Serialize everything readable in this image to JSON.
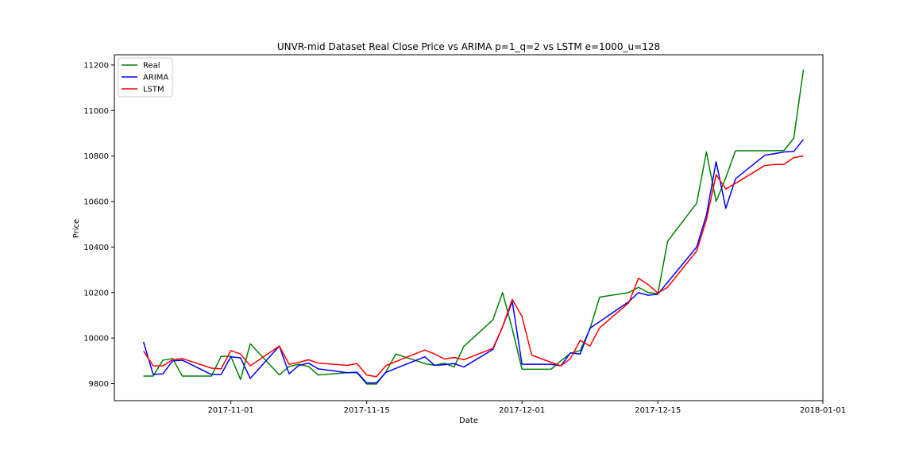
{
  "chart_data": {
    "type": "line",
    "title": "UNVR-mid Dataset Real Close Price vs ARIMA p=1_q=2 vs LSTM e=1000_u=128",
    "xlabel": "Date",
    "ylabel": "Price",
    "x_tick_labels": [
      "2017-11-01",
      "2017-11-15",
      "2017-12-01",
      "2017-12-15",
      "2018-01-01"
    ],
    "y_tick_labels": [
      "9800",
      "10000",
      "10200",
      "10400",
      "10600",
      "10800",
      "11000",
      "11200"
    ],
    "xlim": [
      "2017-10-20",
      "2018-01-01"
    ],
    "ylim": [
      9725,
      11245
    ],
    "grid": false,
    "legend_position": "top-left",
    "series": [
      {
        "name": "Real",
        "color": "#008000",
        "points": [
          [
            "2017-10-23",
            9833
          ],
          [
            "2017-10-24",
            9833
          ],
          [
            "2017-10-25",
            9903
          ],
          [
            "2017-10-26",
            9910
          ],
          [
            "2017-10-27",
            9833
          ],
          [
            "2017-10-30",
            9833
          ],
          [
            "2017-10-31",
            9920
          ],
          [
            "2017-11-01",
            9920
          ],
          [
            "2017-11-02",
            9818
          ],
          [
            "2017-11-03",
            9975
          ],
          [
            "2017-11-06",
            9838
          ],
          [
            "2017-11-07",
            9875
          ],
          [
            "2017-11-08",
            9885
          ],
          [
            "2017-11-09",
            9875
          ],
          [
            "2017-11-10",
            9838
          ],
          [
            "2017-11-13",
            9848
          ],
          [
            "2017-11-14",
            9848
          ],
          [
            "2017-11-15",
            9798
          ],
          [
            "2017-11-16",
            9798
          ],
          [
            "2017-11-17",
            9853
          ],
          [
            "2017-11-18",
            9930
          ],
          [
            "2017-11-21",
            9888
          ],
          [
            "2017-11-22",
            9880
          ],
          [
            "2017-11-23",
            9890
          ],
          [
            "2017-11-24",
            9873
          ],
          [
            "2017-11-25",
            9963
          ],
          [
            "2017-11-28",
            10080
          ],
          [
            "2017-11-29",
            10200
          ],
          [
            "2017-11-30",
            10040
          ],
          [
            "2017-12-01",
            9863
          ],
          [
            "2017-12-04",
            9863
          ],
          [
            "2017-12-05",
            9900
          ],
          [
            "2017-12-06",
            9933
          ],
          [
            "2017-12-07",
            9945
          ],
          [
            "2017-12-08",
            10040
          ],
          [
            "2017-12-09",
            10180
          ],
          [
            "2017-12-12",
            10200
          ],
          [
            "2017-12-13",
            10223
          ],
          [
            "2017-12-14",
            10200
          ],
          [
            "2017-12-15",
            10195
          ],
          [
            "2017-12-16",
            10425
          ],
          [
            "2017-12-19",
            10593
          ],
          [
            "2017-12-20",
            10818
          ],
          [
            "2017-12-21",
            10600
          ],
          [
            "2017-12-22",
            10705
          ],
          [
            "2017-12-23",
            10823
          ],
          [
            "2017-12-27",
            10823
          ],
          [
            "2017-12-28",
            10825
          ],
          [
            "2017-12-29",
            10878
          ],
          [
            "2017-12-30",
            11180
          ]
        ]
      },
      {
        "name": "ARIMA",
        "color": "#0000ff",
        "points": [
          [
            "2017-10-23",
            9983
          ],
          [
            "2017-10-24",
            9840
          ],
          [
            "2017-10-25",
            9843
          ],
          [
            "2017-10-26",
            9900
          ],
          [
            "2017-10-27",
            9903
          ],
          [
            "2017-10-30",
            9840
          ],
          [
            "2017-10-31",
            9840
          ],
          [
            "2017-11-01",
            9918
          ],
          [
            "2017-11-02",
            9913
          ],
          [
            "2017-11-03",
            9823
          ],
          [
            "2017-11-06",
            9965
          ],
          [
            "2017-11-07",
            9843
          ],
          [
            "2017-11-08",
            9880
          ],
          [
            "2017-11-09",
            9890
          ],
          [
            "2017-11-10",
            9865
          ],
          [
            "2017-11-13",
            9848
          ],
          [
            "2017-11-14",
            9850
          ],
          [
            "2017-11-15",
            9803
          ],
          [
            "2017-11-16",
            9803
          ],
          [
            "2017-11-17",
            9850
          ],
          [
            "2017-11-21",
            9918
          ],
          [
            "2017-11-22",
            9880
          ],
          [
            "2017-11-23",
            9883
          ],
          [
            "2017-11-24",
            9888
          ],
          [
            "2017-11-25",
            9873
          ],
          [
            "2017-11-28",
            9950
          ],
          [
            "2017-11-29",
            10050
          ],
          [
            "2017-11-30",
            10160
          ],
          [
            "2017-12-01",
            9885
          ],
          [
            "2017-12-04",
            9885
          ],
          [
            "2017-12-05",
            9878
          ],
          [
            "2017-12-06",
            9935
          ],
          [
            "2017-12-07",
            9930
          ],
          [
            "2017-12-08",
            10043
          ],
          [
            "2017-12-12",
            10160
          ],
          [
            "2017-12-13",
            10200
          ],
          [
            "2017-12-14",
            10188
          ],
          [
            "2017-12-15",
            10193
          ],
          [
            "2017-12-19",
            10400
          ],
          [
            "2017-12-20",
            10540
          ],
          [
            "2017-12-21",
            10775
          ],
          [
            "2017-12-22",
            10570
          ],
          [
            "2017-12-23",
            10700
          ],
          [
            "2017-12-26",
            10803
          ],
          [
            "2017-12-27",
            10810
          ],
          [
            "2017-12-28",
            10818
          ],
          [
            "2017-12-29",
            10820
          ],
          [
            "2017-12-30",
            10873
          ]
        ]
      },
      {
        "name": "LSTM",
        "color": "#ff0000",
        "points": [
          [
            "2017-10-23",
            9943
          ],
          [
            "2017-10-24",
            9878
          ],
          [
            "2017-10-25",
            9878
          ],
          [
            "2017-10-26",
            9905
          ],
          [
            "2017-10-27",
            9910
          ],
          [
            "2017-10-30",
            9868
          ],
          [
            "2017-10-31",
            9865
          ],
          [
            "2017-11-01",
            9945
          ],
          [
            "2017-11-02",
            9930
          ],
          [
            "2017-11-03",
            9878
          ],
          [
            "2017-11-06",
            9965
          ],
          [
            "2017-11-07",
            9885
          ],
          [
            "2017-11-08",
            9893
          ],
          [
            "2017-11-09",
            9905
          ],
          [
            "2017-11-10",
            9890
          ],
          [
            "2017-11-13",
            9880
          ],
          [
            "2017-11-14",
            9888
          ],
          [
            "2017-11-15",
            9838
          ],
          [
            "2017-11-16",
            9830
          ],
          [
            "2017-11-17",
            9880
          ],
          [
            "2017-11-21",
            9948
          ],
          [
            "2017-11-22",
            9930
          ],
          [
            "2017-11-23",
            9908
          ],
          [
            "2017-11-24",
            9915
          ],
          [
            "2017-11-25",
            9905
          ],
          [
            "2017-11-28",
            9955
          ],
          [
            "2017-11-29",
            10050
          ],
          [
            "2017-11-30",
            10170
          ],
          [
            "2017-12-01",
            10095
          ],
          [
            "2017-12-02",
            9925
          ],
          [
            "2017-12-05",
            9878
          ],
          [
            "2017-12-06",
            9910
          ],
          [
            "2017-12-07",
            9990
          ],
          [
            "2017-12-08",
            9965
          ],
          [
            "2017-12-09",
            10045
          ],
          [
            "2017-12-12",
            10155
          ],
          [
            "2017-12-13",
            10263
          ],
          [
            "2017-12-14",
            10235
          ],
          [
            "2017-12-15",
            10198
          ],
          [
            "2017-12-16",
            10223
          ],
          [
            "2017-12-19",
            10383
          ],
          [
            "2017-12-20",
            10520
          ],
          [
            "2017-12-21",
            10718
          ],
          [
            "2017-12-22",
            10655
          ],
          [
            "2017-12-23",
            10680
          ],
          [
            "2017-12-26",
            10758
          ],
          [
            "2017-12-27",
            10763
          ],
          [
            "2017-12-28",
            10763
          ],
          [
            "2017-12-29",
            10793
          ],
          [
            "2017-12-30",
            10800
          ]
        ]
      }
    ]
  }
}
